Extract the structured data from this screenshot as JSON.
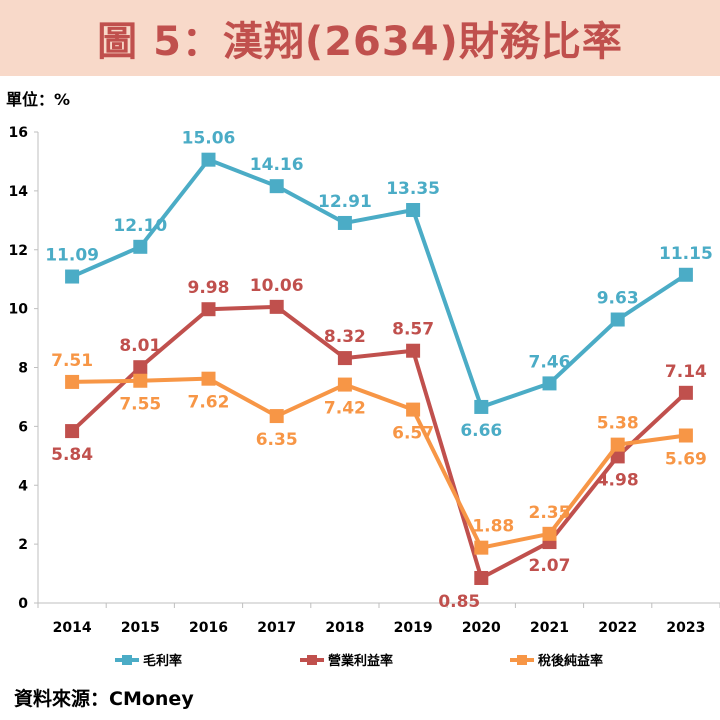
{
  "header": {
    "title": "圖 5：漢翔(2634)財務比率"
  },
  "unit_label": "單位：%",
  "source_label": "資料來源：CMoney",
  "colors": {
    "gross": "#4bacc6",
    "operating": "#c0504d",
    "net": "#f79646",
    "banner_bg": "#f8d9c9",
    "title": "#c0504d"
  },
  "chart_data": {
    "type": "line",
    "title": "圖 5：漢翔(2634)財務比率",
    "xlabel": "",
    "ylabel": "單位：%",
    "ylim": [
      0,
      16
    ],
    "yticks": [
      "0",
      "2",
      "4",
      "6",
      "8",
      "10",
      "12",
      "14",
      "16"
    ],
    "categories": [
      "2014",
      "2015",
      "2016",
      "2017",
      "2018",
      "2019",
      "2020",
      "2021",
      "2022",
      "2023"
    ],
    "series": [
      {
        "name": "毛利率",
        "color": "#4bacc6",
        "values": [
          11.09,
          12.1,
          15.06,
          14.16,
          12.91,
          13.35,
          6.66,
          7.46,
          9.63,
          11.15
        ],
        "labels": [
          "11.09",
          "12.10",
          "15.06",
          "14.16",
          "12.91",
          "13.35",
          "6.66",
          "7.46",
          "9.63",
          "11.15"
        ]
      },
      {
        "name": "營業利益率",
        "color": "#c0504d",
        "values": [
          5.84,
          8.01,
          9.98,
          10.06,
          8.32,
          8.57,
          0.85,
          2.07,
          4.98,
          7.14
        ],
        "labels": [
          "5.84",
          "8.01",
          "9.98",
          "10.06",
          "8.32",
          "8.57",
          "0.85",
          "2.07",
          "4.98",
          "7.14"
        ]
      },
      {
        "name": "稅後純益率",
        "color": "#f79646",
        "values": [
          7.51,
          7.55,
          7.62,
          6.35,
          7.42,
          6.57,
          1.88,
          2.35,
          5.38,
          5.69
        ],
        "labels": [
          "7.51",
          "7.55",
          "7.62",
          "6.35",
          "7.42",
          "6.57",
          "1.88",
          "2.35",
          "5.38",
          "5.69"
        ]
      }
    ],
    "legend": "bottom"
  }
}
